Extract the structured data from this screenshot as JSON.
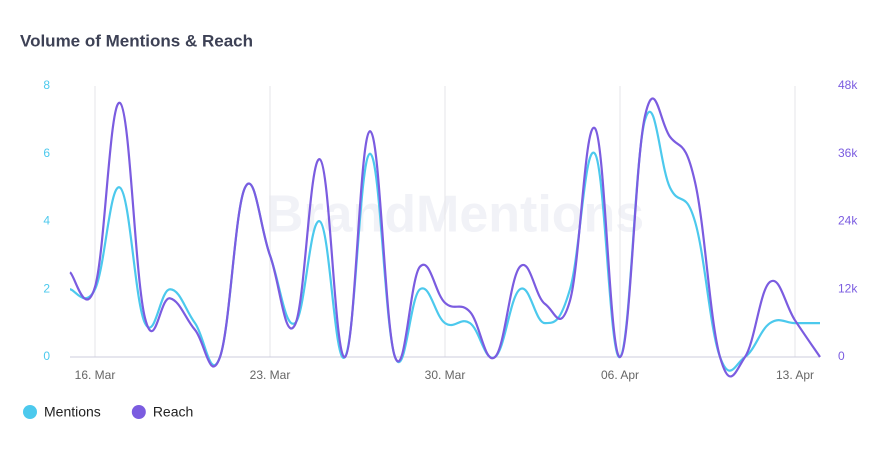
{
  "chart_data": {
    "type": "line",
    "title": "Volume of Mentions & Reach",
    "watermark": "BrandMentions",
    "categories": [
      null,
      "16. Mar",
      null,
      null,
      null,
      null,
      null,
      null,
      "23. Mar",
      null,
      null,
      null,
      null,
      null,
      null,
      "30. Mar",
      null,
      null,
      null,
      null,
      null,
      null,
      "06. Apr",
      null,
      null,
      null,
      null,
      null,
      null,
      "13. Apr",
      null
    ],
    "series": [
      {
        "name": "Mentions",
        "color": "#4cc9ed",
        "values": [
          2,
          2,
          5,
          1,
          2,
          1,
          0,
          5,
          3,
          1,
          4,
          0,
          6,
          0,
          2,
          1,
          1,
          0,
          2,
          1,
          2,
          6,
          0,
          7,
          5,
          4,
          0,
          0,
          1,
          1,
          1
        ]
      },
      {
        "name": "Reach",
        "color": "#7b5ce0",
        "axis": "y2",
        "values": [
          15000,
          12400,
          45000,
          6900,
          10400,
          4800,
          0,
          30000,
          18000,
          5700,
          35000,
          0,
          40000,
          0,
          16000,
          9600,
          8000,
          0,
          16000,
          9400,
          10000,
          40500,
          0,
          42700,
          39000,
          31000,
          0,
          0,
          13300,
          6500,
          0
        ]
      }
    ],
    "ylim": [
      0,
      8
    ],
    "yticks": [
      0,
      2,
      4,
      6,
      8
    ],
    "y2lim": [
      0,
      48000
    ],
    "y2ticks": [
      0,
      {
        "value": 12000,
        "label": "12k"
      },
      {
        "value": 24000,
        "label": "24k"
      },
      {
        "value": 36000,
        "label": "36k"
      },
      {
        "value": 48000,
        "label": "48k"
      }
    ],
    "legend": "bottom-left"
  }
}
